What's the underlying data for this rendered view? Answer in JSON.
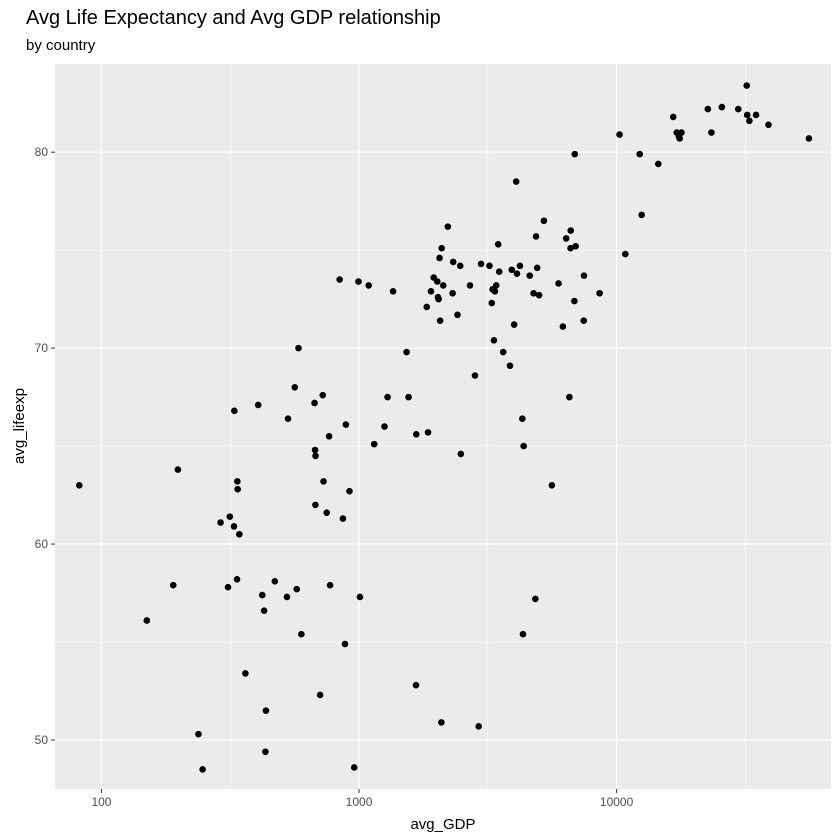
{
  "chart_data": {
    "type": "scatter",
    "title": "Avg Life Expectancy and Avg GDP relationship",
    "subtitle": "by country",
    "xlabel": "avg_GDP",
    "ylabel": "avg_lifeexp",
    "x_scale": "log10",
    "xlim": [
      66,
      68000
    ],
    "ylim": [
      47.5,
      84.5
    ],
    "x_ticks": [
      100,
      1000,
      10000
    ],
    "x_tick_labels": [
      "100",
      "1000",
      "10000"
    ],
    "y_ticks": [
      50,
      60,
      70,
      80
    ],
    "y_tick_labels": [
      "50",
      "60",
      "70",
      "80"
    ],
    "grid": true,
    "legend": "none",
    "points": [
      [
        82,
        63.0
      ],
      [
        150,
        56.1
      ],
      [
        190,
        57.9
      ],
      [
        198,
        63.8
      ],
      [
        238,
        50.3
      ],
      [
        247,
        48.5
      ],
      [
        290,
        61.1
      ],
      [
        310,
        57.8
      ],
      [
        315,
        61.4
      ],
      [
        327,
        60.9
      ],
      [
        328,
        66.8
      ],
      [
        336,
        58.2
      ],
      [
        337,
        63.2
      ],
      [
        338,
        62.8
      ],
      [
        343,
        60.5
      ],
      [
        362,
        53.4
      ],
      [
        406,
        67.1
      ],
      [
        421,
        57.4
      ],
      [
        428,
        56.6
      ],
      [
        433,
        49.4
      ],
      [
        435,
        51.5
      ],
      [
        471,
        58.1
      ],
      [
        525,
        57.3
      ],
      [
        530,
        66.4
      ],
      [
        563,
        68.0
      ],
      [
        573,
        57.7
      ],
      [
        582,
        70.0
      ],
      [
        597,
        55.4
      ],
      [
        672,
        67.2
      ],
      [
        675,
        64.8
      ],
      [
        677,
        62.0
      ],
      [
        678,
        64.5
      ],
      [
        706,
        52.3
      ],
      [
        723,
        67.6
      ],
      [
        728,
        63.2
      ],
      [
        749,
        61.6
      ],
      [
        765,
        65.5
      ],
      [
        772,
        57.9
      ],
      [
        841,
        73.5
      ],
      [
        866,
        61.3
      ],
      [
        882,
        54.9
      ],
      [
        889,
        66.1
      ],
      [
        918,
        62.7
      ],
      [
        958,
        48.6
      ],
      [
        995,
        73.4
      ],
      [
        1008,
        57.3
      ],
      [
        1090,
        73.2
      ],
      [
        1145,
        65.1
      ],
      [
        1256,
        66.0
      ],
      [
        1291,
        67.5
      ],
      [
        1356,
        72.9
      ],
      [
        1530,
        69.8
      ],
      [
        1557,
        67.5
      ],
      [
        1664,
        52.8
      ],
      [
        1668,
        65.6
      ],
      [
        1832,
        72.1
      ],
      [
        1854,
        65.7
      ],
      [
        1903,
        72.9
      ],
      [
        1950,
        73.6
      ],
      [
        2013,
        73.4
      ],
      [
        2026,
        72.6
      ],
      [
        2036,
        72.5
      ],
      [
        2054,
        74.6
      ],
      [
        2065,
        71.4
      ],
      [
        2088,
        50.9
      ],
      [
        2094,
        75.1
      ],
      [
        2123,
        73.2
      ],
      [
        2213,
        76.2
      ],
      [
        2308,
        72.8
      ],
      [
        2321,
        74.4
      ],
      [
        2412,
        71.7
      ],
      [
        2471,
        74.2
      ],
      [
        2484,
        64.6
      ],
      [
        2697,
        73.2
      ],
      [
        2820,
        68.6
      ],
      [
        2915,
        50.7
      ],
      [
        2977,
        74.3
      ],
      [
        3210,
        74.2
      ],
      [
        3276,
        72.3
      ],
      [
        3301,
        73.0
      ],
      [
        3341,
        70.4
      ],
      [
        3370,
        72.9
      ],
      [
        3409,
        73.2
      ],
      [
        3471,
        75.3
      ],
      [
        3501,
        73.9
      ],
      [
        3629,
        69.8
      ],
      [
        3856,
        69.1
      ],
      [
        3917,
        74.0
      ],
      [
        4002,
        71.2
      ],
      [
        4075,
        78.5
      ],
      [
        4103,
        73.8
      ],
      [
        4214,
        74.2
      ],
      [
        4305,
        66.4
      ],
      [
        4331,
        55.4
      ],
      [
        4357,
        65.0
      ],
      [
        4600,
        73.7
      ],
      [
        4762,
        72.8
      ],
      [
        4838,
        57.2
      ],
      [
        4867,
        75.7
      ],
      [
        4916,
        74.1
      ],
      [
        5003,
        72.7
      ],
      [
        5222,
        76.5
      ],
      [
        5608,
        63.0
      ],
      [
        5951,
        73.3
      ],
      [
        6187,
        71.1
      ],
      [
        6371,
        75.6
      ],
      [
        6559,
        67.5
      ],
      [
        6624,
        75.1
      ],
      [
        6635,
        76.0
      ],
      [
        6856,
        72.4
      ],
      [
        6882,
        79.9
      ],
      [
        6935,
        75.2
      ],
      [
        7454,
        71.4
      ],
      [
        7472,
        73.7
      ],
      [
        8592,
        72.8
      ],
      [
        10267,
        80.9
      ],
      [
        10811,
        74.8
      ],
      [
        12299,
        79.9
      ],
      [
        12511,
        76.8
      ],
      [
        14516,
        79.4
      ],
      [
        16592,
        81.8
      ],
      [
        17130,
        81.0
      ],
      [
        17467,
        80.8
      ],
      [
        17579,
        80.7
      ],
      [
        17860,
        81.0
      ],
      [
        22609,
        82.2
      ],
      [
        23340,
        81.0
      ],
      [
        25634,
        82.3
      ],
      [
        29681,
        82.2
      ],
      [
        32018,
        83.4
      ],
      [
        32152,
        81.9
      ],
      [
        32790,
        81.6
      ],
      [
        34795,
        81.9
      ],
      [
        38878,
        81.4
      ],
      [
        55820,
        80.7
      ]
    ]
  }
}
